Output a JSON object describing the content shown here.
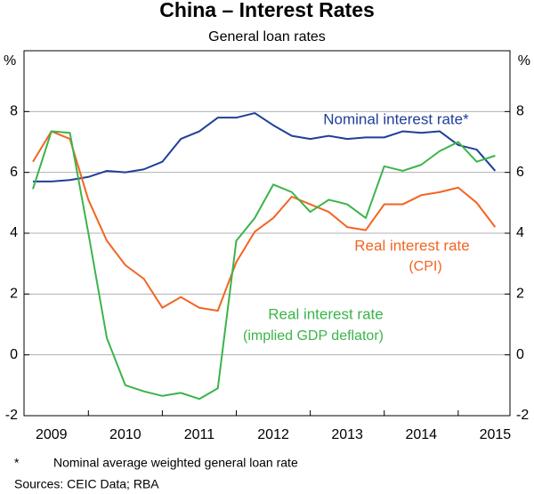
{
  "chart_data": {
    "type": "line",
    "title": "China – Interest Rates",
    "subtitle": "General loan rates",
    "y_unit": "%",
    "y2_unit": "%",
    "x": [
      2009.25,
      2009.5,
      2009.75,
      2010.0,
      2010.25,
      2010.5,
      2010.75,
      2011.0,
      2011.25,
      2011.5,
      2011.75,
      2012.0,
      2012.25,
      2012.5,
      2012.75,
      2013.0,
      2013.25,
      2013.5,
      2013.75,
      2014.0,
      2014.25,
      2014.5,
      2014.75,
      2015.0,
      2015.25,
      2015.5
    ],
    "xlim": [
      2009.13,
      2015.7
    ],
    "xticks": [
      {
        "value": 2009.5,
        "label": "2009"
      },
      {
        "value": 2010.5,
        "label": "2010"
      },
      {
        "value": 2011.5,
        "label": "2011"
      },
      {
        "value": 2012.5,
        "label": "2012"
      },
      {
        "value": 2013.5,
        "label": "2013"
      },
      {
        "value": 2014.5,
        "label": "2014"
      },
      {
        "value": 2015.5,
        "label": "2015"
      }
    ],
    "ylim": [
      -2,
      10
    ],
    "yticks": [
      -2,
      0,
      2,
      4,
      6,
      8
    ],
    "y2lim": [
      -2,
      10
    ],
    "y2ticks": [
      -2,
      0,
      2,
      4,
      6,
      8
    ],
    "grid": true,
    "series": [
      {
        "name": "Nominal interest rate*",
        "color": "#1f3f9a",
        "values": [
          5.7,
          5.7,
          5.75,
          5.85,
          6.05,
          6.0,
          6.1,
          6.35,
          7.1,
          7.35,
          7.8,
          7.8,
          7.95,
          7.55,
          7.2,
          7.1,
          7.2,
          7.1,
          7.15,
          7.15,
          7.35,
          7.3,
          7.35,
          6.9,
          6.75,
          6.05
        ]
      },
      {
        "name": "Real interest rate",
        "note": "(CPI)",
        "color": "#f26522",
        "values": [
          6.35,
          7.35,
          7.1,
          5.1,
          3.75,
          2.95,
          2.5,
          1.55,
          1.9,
          1.55,
          1.45,
          3.05,
          4.05,
          4.5,
          5.2,
          4.95,
          4.7,
          4.2,
          4.1,
          4.95,
          4.95,
          5.25,
          5.35,
          5.5,
          5.0,
          4.2
        ]
      },
      {
        "name": "Real interest rate",
        "note": "(implied GDP deflator)",
        "color": "#3bb44a",
        "values": [
          5.45,
          7.35,
          7.3,
          4.0,
          0.55,
          -1.0,
          -1.2,
          -1.35,
          -1.25,
          -1.45,
          -1.1,
          3.75,
          4.5,
          5.6,
          5.35,
          4.7,
          5.1,
          4.95,
          4.5,
          6.2,
          6.05,
          6.25,
          6.7,
          7.0,
          6.35,
          6.55
        ]
      }
    ],
    "footnote_marker": "*",
    "footnote": "Nominal average weighted general loan rate",
    "sources": "Sources:  CEIC Data; RBA"
  }
}
